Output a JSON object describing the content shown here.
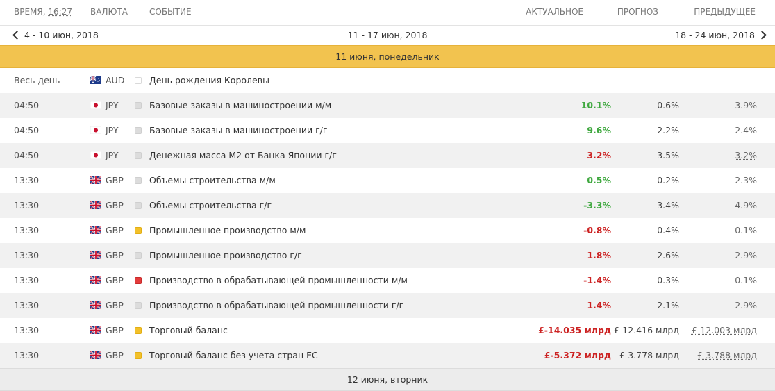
{
  "header": {
    "time_label": "ВРЕМЯ,",
    "time_value": "16:27",
    "currency": "ВАЛЮТА",
    "event": "СОБЫТИЕ",
    "actual": "АКТУАЛЬНОЕ",
    "forecast": "ПРОГНОЗ",
    "previous": "ПРЕДЫДУЩЕЕ"
  },
  "week_nav": {
    "prev": "4 - 10 июн, 2018",
    "current": "11 - 17 июн, 2018",
    "next": "18 - 24 июн, 2018"
  },
  "day1": "11 июня, понедельник",
  "day2": "12 июня, вторник",
  "colors": {
    "positive": "#3fa83f",
    "negative": "#cc2222",
    "day_header": "#f2c34f"
  },
  "rows": [
    {
      "time": "Весь день",
      "flag": "AU",
      "currency": "AUD",
      "importance": "none",
      "event": "День рождения Королевы",
      "actual": "",
      "actual_color": "",
      "forecast": "",
      "previous": ""
    },
    {
      "time": "04:50",
      "flag": "JP",
      "currency": "JPY",
      "importance": "low",
      "event": "Базовые заказы в машиностроении м/м",
      "actual": "10.1%",
      "actual_color": "pos",
      "forecast": "0.6%",
      "previous": "-3.9%"
    },
    {
      "time": "04:50",
      "flag": "JP",
      "currency": "JPY",
      "importance": "low",
      "event": "Базовые заказы в машиностроении г/г",
      "actual": "9.6%",
      "actual_color": "pos",
      "forecast": "2.2%",
      "previous": "-2.4%"
    },
    {
      "time": "04:50",
      "flag": "JP",
      "currency": "JPY",
      "importance": "low",
      "event": "Денежная масса М2 от Банка Японии г/г",
      "actual": "3.2%",
      "actual_color": "neg",
      "forecast": "3.5%",
      "previous": "3.2%",
      "previous_underline": true
    },
    {
      "time": "13:30",
      "flag": "GB",
      "currency": "GBP",
      "importance": "low",
      "event": "Объемы строительства м/м",
      "actual": "0.5%",
      "actual_color": "pos",
      "forecast": "0.2%",
      "previous": "-2.3%"
    },
    {
      "time": "13:30",
      "flag": "GB",
      "currency": "GBP",
      "importance": "low",
      "event": "Объемы строительства г/г",
      "actual": "-3.3%",
      "actual_color": "pos",
      "forecast": "-3.4%",
      "previous": "-4.9%"
    },
    {
      "time": "13:30",
      "flag": "GB",
      "currency": "GBP",
      "importance": "med",
      "event": "Промышленное производство м/м",
      "actual": "-0.8%",
      "actual_color": "neg",
      "forecast": "0.4%",
      "previous": "0.1%"
    },
    {
      "time": "13:30",
      "flag": "GB",
      "currency": "GBP",
      "importance": "low",
      "event": "Промышленное производство г/г",
      "actual": "1.8%",
      "actual_color": "neg",
      "forecast": "2.6%",
      "previous": "2.9%"
    },
    {
      "time": "13:30",
      "flag": "GB",
      "currency": "GBP",
      "importance": "high",
      "event": "Производство в обрабатывающей промышленности м/м",
      "actual": "-1.4%",
      "actual_color": "neg",
      "forecast": "-0.3%",
      "previous": "-0.1%"
    },
    {
      "time": "13:30",
      "flag": "GB",
      "currency": "GBP",
      "importance": "low",
      "event": "Производство в обрабатывающей промышленности г/г",
      "actual": "1.4%",
      "actual_color": "neg",
      "forecast": "2.1%",
      "previous": "2.9%"
    },
    {
      "time": "13:30",
      "flag": "GB",
      "currency": "GBP",
      "importance": "med",
      "event": "Торговый баланс",
      "actual": "£-14.035 млрд",
      "actual_color": "neg",
      "forecast": "£-12.416 млрд",
      "previous": "£-12.003 млрд",
      "previous_underline": true
    },
    {
      "time": "13:30",
      "flag": "GB",
      "currency": "GBP",
      "importance": "med",
      "event": "Торговый баланс без учета стран ЕС",
      "actual": "£-5.372 млрд",
      "actual_color": "neg",
      "forecast": "£-3.778 млрд",
      "previous": "£-3.788 млрд",
      "previous_underline": true
    }
  ]
}
